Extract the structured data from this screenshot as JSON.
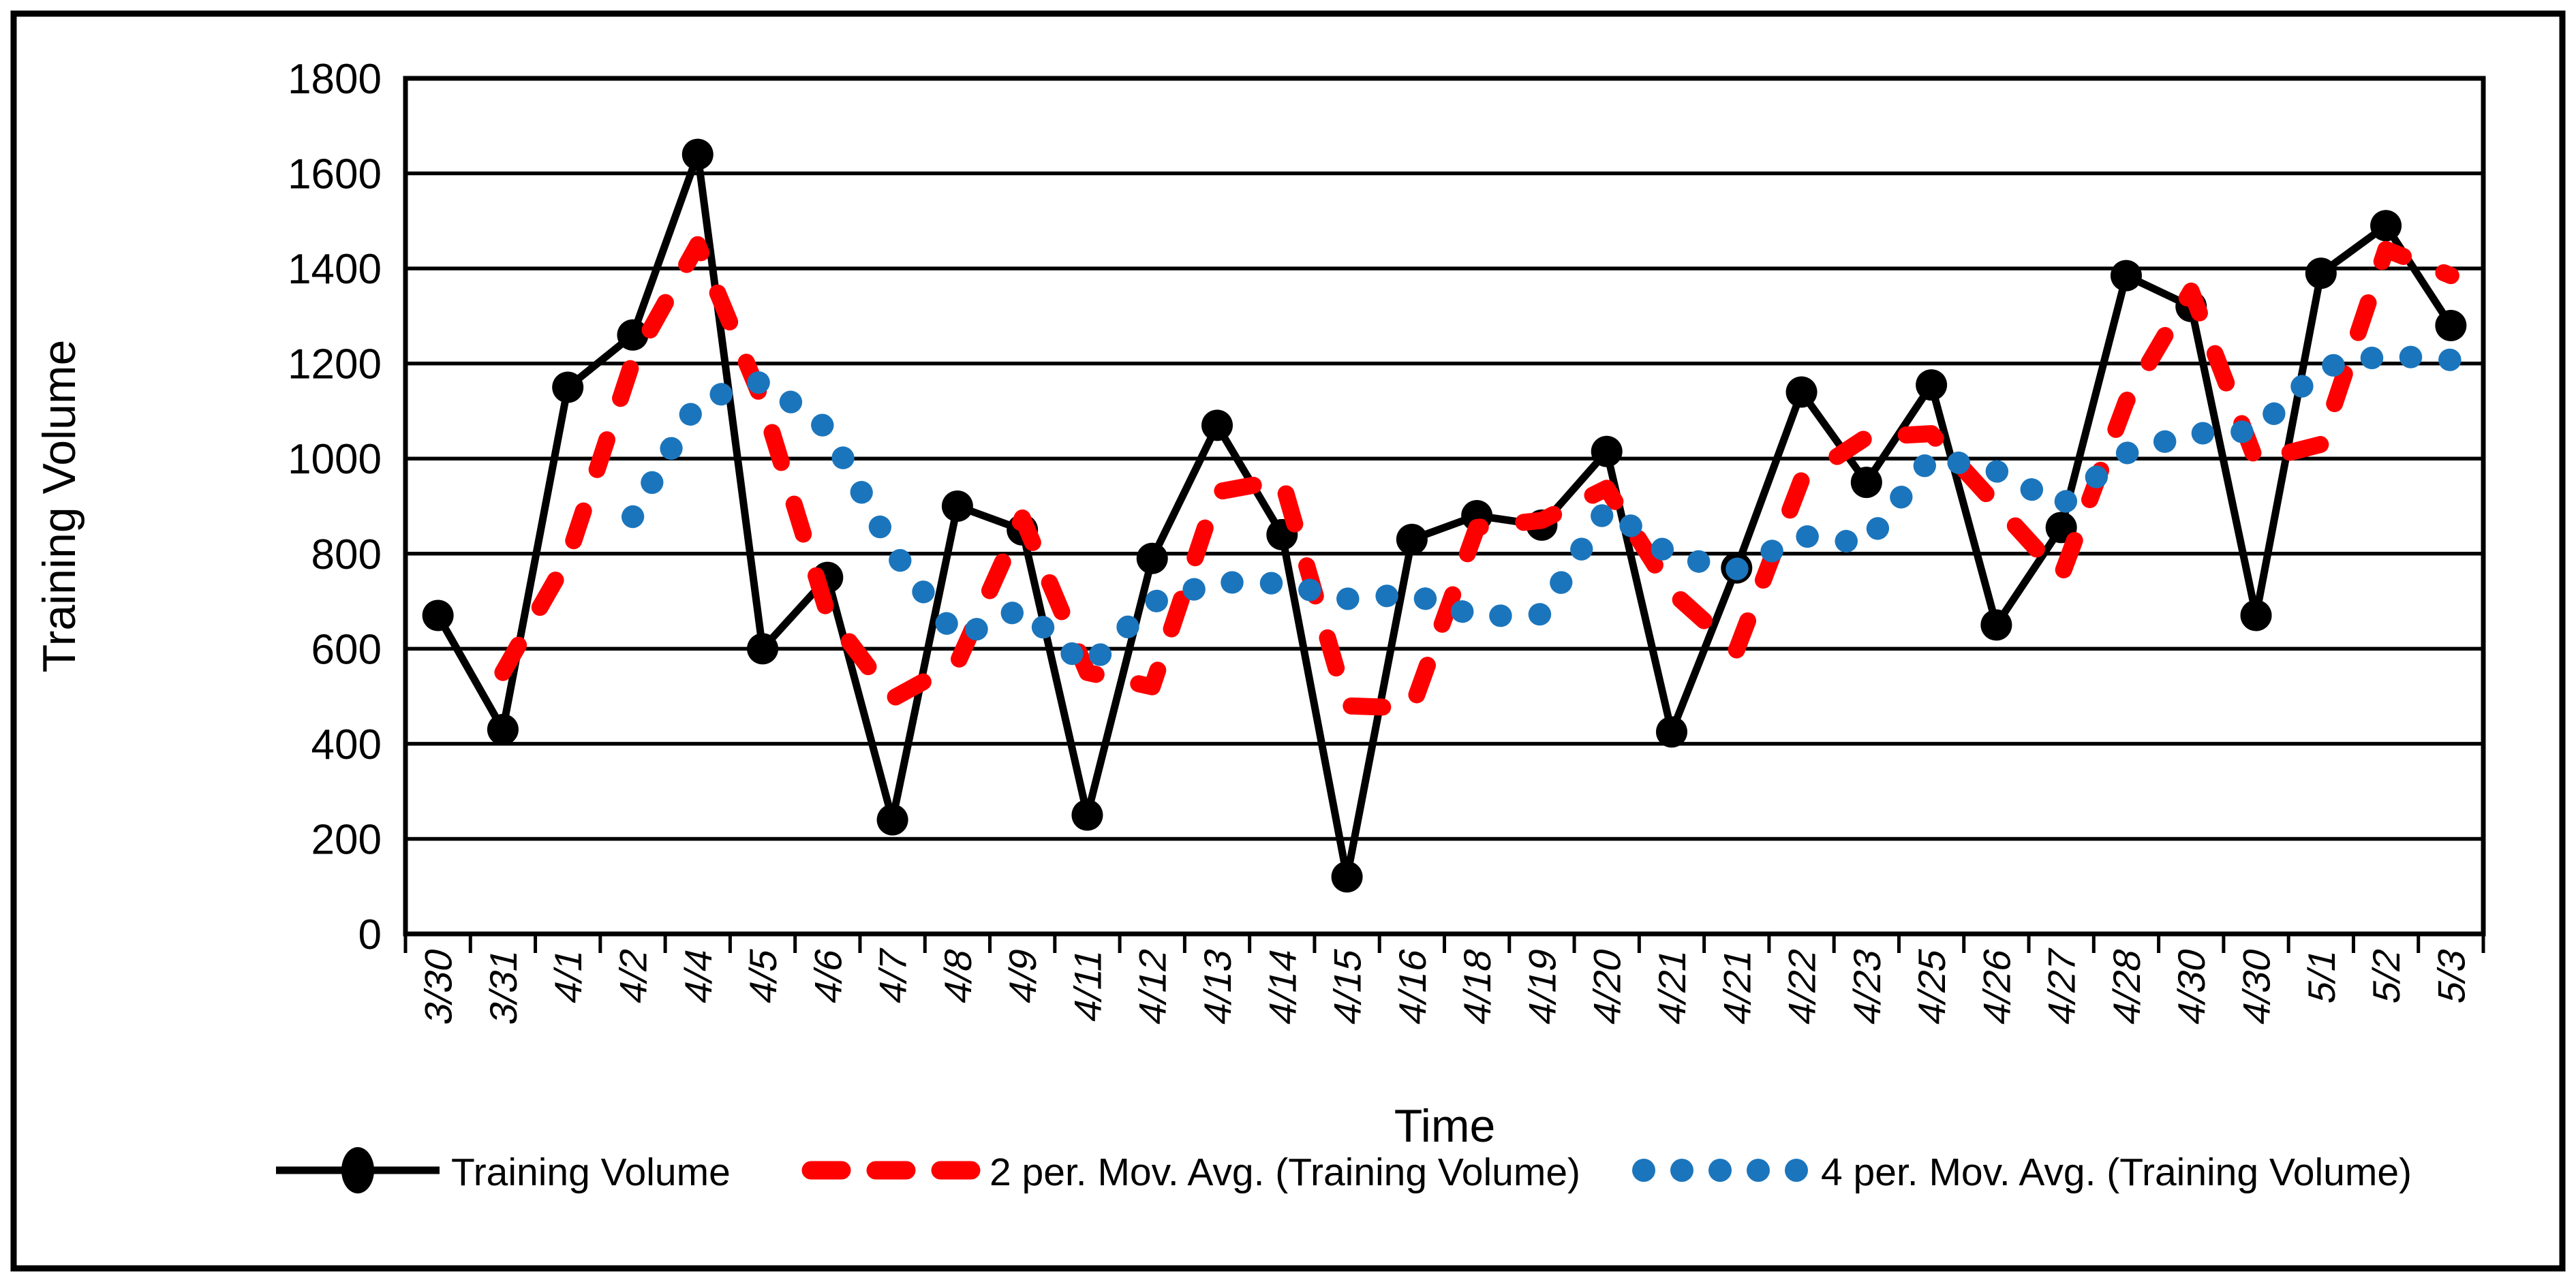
{
  "chart_data": {
    "type": "line",
    "title": "",
    "xlabel": "Time",
    "ylabel": "Training Volume",
    "ylim": [
      0,
      1800
    ],
    "ytick_step": 200,
    "y_ticks": [
      0,
      200,
      400,
      600,
      800,
      1000,
      1200,
      1400,
      1600,
      1800
    ],
    "grid": true,
    "legend_position": "bottom",
    "categories": [
      "3/30",
      "3/31",
      "4/1",
      "4/2",
      "4/4",
      "4/5",
      "4/6",
      "4/7",
      "4/8",
      "4/9",
      "4/11",
      "4/12",
      "4/13",
      "4/14",
      "4/15",
      "4/16",
      "4/18",
      "4/19",
      "4/20",
      "4/21",
      "4/21",
      "4/22",
      "4/23",
      "4/25",
      "4/26",
      "4/27",
      "4/28",
      "4/30",
      "4/30",
      "5/1",
      "5/2",
      "5/3"
    ],
    "series": [
      {
        "name": "Training Volume",
        "kind": "line-with-markers",
        "color": "#000000",
        "dash": "solid",
        "values": [
          670,
          430,
          1150,
          1260,
          1640,
          600,
          750,
          240,
          900,
          850,
          250,
          790,
          1070,
          840,
          120,
          830,
          880,
          860,
          1015,
          425,
          770,
          1140,
          950,
          1155,
          650,
          855,
          1385,
          1320,
          670,
          1390,
          1490,
          1280
        ]
      },
      {
        "name": "2 per. Mov. Avg. (Training Volume)",
        "kind": "moving-average-trendline",
        "period": 2,
        "color": "#FF0000",
        "dash": "dashed",
        "values": [
          null,
          550,
          790,
          1205,
          1450,
          1120,
          675,
          495,
          570,
          875,
          550,
          520,
          930,
          955,
          480,
          475,
          855,
          870,
          937.5,
          720,
          597.5,
          955,
          1045,
          1052.5,
          902.5,
          752.5,
          1120,
          1352.5,
          995,
          1030,
          1440,
          1385
        ]
      },
      {
        "name": "4 per. Mov. Avg. (Training Volume)",
        "kind": "moving-average-trendline",
        "period": 4,
        "color": "#1B75BC",
        "dash": "dotted",
        "values": [
          null,
          null,
          null,
          877.5,
          1120,
          1162.5,
          1062.5,
          807.5,
          622.5,
          685,
          560,
          697.5,
          740,
          737.5,
          705,
          715,
          667.5,
          672.5,
          896.25,
          795,
          767.5,
          837.5,
          821.25,
          1003.75,
          973.75,
          902.5,
          1011.25,
          1052.5,
          1057.5,
          1191.25,
          1217.5,
          1207.5
        ]
      }
    ]
  }
}
